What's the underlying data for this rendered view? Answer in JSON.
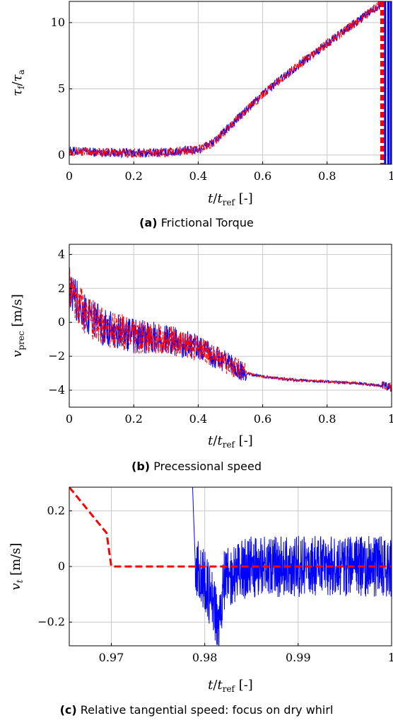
{
  "chart_data": [
    {
      "type": "line",
      "caption_label": "(a)",
      "caption_text": "Frictional Torque",
      "xlabel": "t / t_ref [-]",
      "ylabel": "τf / τa",
      "xlim": [
        0,
        1
      ],
      "ylim": [
        -0.7,
        11.6
      ],
      "xticks": [
        "0",
        "0.2",
        "0.4",
        "0.6",
        "0.8",
        "1"
      ],
      "yticks": [
        "0",
        "5",
        "10"
      ],
      "grid": true,
      "series": [
        {
          "color": "#0000ff",
          "style": "solid",
          "x": [
            0,
            0.1,
            0.2,
            0.3,
            0.4,
            0.45,
            0.5,
            0.6,
            0.7,
            0.8,
            0.9,
            0.95,
            0.97,
            0.98,
            0.99,
            1.0
          ],
          "y": [
            0.3,
            0.2,
            0.15,
            0.2,
            0.4,
            1.0,
            2.2,
            4.6,
            6.6,
            8.4,
            10.2,
            11.1,
            11.5,
            11.6,
            11.6,
            11.6
          ]
        },
        {
          "color": "#ff0000",
          "style": "dashed",
          "x": [
            0,
            0.1,
            0.2,
            0.3,
            0.4,
            0.45,
            0.5,
            0.6,
            0.7,
            0.8,
            0.9,
            0.95,
            0.96,
            0.97
          ],
          "y": [
            0.3,
            0.2,
            0.15,
            0.2,
            0.4,
            1.0,
            2.2,
            4.6,
            6.6,
            8.4,
            10.2,
            11.1,
            11.4,
            11.6
          ]
        }
      ]
    },
    {
      "type": "line",
      "caption_label": "(b)",
      "caption_text": "Precessional speed",
      "xlabel": "t / t_ref [-]",
      "ylabel": "v_prec [m/s]",
      "xlim": [
        0,
        1
      ],
      "ylim": [
        -5,
        4.6
      ],
      "xticks": [
        "0",
        "0.2",
        "0.4",
        "0.6",
        "0.8",
        "1"
      ],
      "yticks": [
        "4",
        "2",
        "0",
        "−2",
        "−4"
      ],
      "grid": true,
      "series": [
        {
          "color": "#0000ff",
          "style": "solid",
          "x": [
            0,
            0.05,
            0.1,
            0.2,
            0.3,
            0.4,
            0.45,
            0.5,
            0.55,
            0.6,
            0.7,
            0.8,
            0.9,
            0.95,
            1.0
          ],
          "y": [
            2.0,
            0.5,
            -0.2,
            -0.8,
            -1.0,
            -1.5,
            -2.0,
            -2.5,
            -3.0,
            -3.2,
            -3.4,
            -3.5,
            -3.6,
            -3.7,
            -3.8
          ]
        },
        {
          "color": "#ff0000",
          "style": "dashed",
          "x": [
            0,
            0.05,
            0.1,
            0.2,
            0.3,
            0.4,
            0.45,
            0.5,
            0.55,
            0.6,
            0.7,
            0.8,
            0.9,
            0.95,
            1.0
          ],
          "y": [
            2.0,
            0.5,
            -0.2,
            -0.8,
            -1.0,
            -1.5,
            -2.0,
            -2.5,
            -3.0,
            -3.2,
            -3.4,
            -3.5,
            -3.6,
            -3.7,
            -3.8
          ]
        }
      ]
    },
    {
      "type": "line",
      "caption_label": "(c)",
      "caption_text": "Relative tangential speed: focus on dry whirl",
      "xlabel": "t / t_ref [-]",
      "ylabel": "v_t [m/s]",
      "xlim": [
        0.9655,
        1.0
      ],
      "ylim": [
        -0.285,
        0.285
      ],
      "xticks": [
        "0.97",
        "0.98",
        "0.99",
        "1"
      ],
      "yticks": [
        "0.2",
        "0",
        "−0.2"
      ],
      "grid": true,
      "series": [
        {
          "color": "#0000ff",
          "style": "solid",
          "x": [
            0.9787,
            0.979,
            0.98,
            0.981,
            0.9815,
            0.982,
            0.985,
            0.99,
            0.995,
            1.0
          ],
          "y": [
            0.285,
            0.0,
            -0.05,
            -0.15,
            -0.24,
            -0.05,
            0.0,
            0.0,
            0.0,
            0.0
          ]
        },
        {
          "color": "#ff0000",
          "style": "dashed",
          "x": [
            0.9655,
            0.9695,
            0.97,
            0.975,
            0.98,
            0.985,
            0.99,
            0.995,
            1.0
          ],
          "y": [
            0.285,
            0.12,
            0.0,
            0.0,
            0.0,
            0.0,
            0.0,
            0.0,
            0.0
          ]
        }
      ]
    }
  ]
}
